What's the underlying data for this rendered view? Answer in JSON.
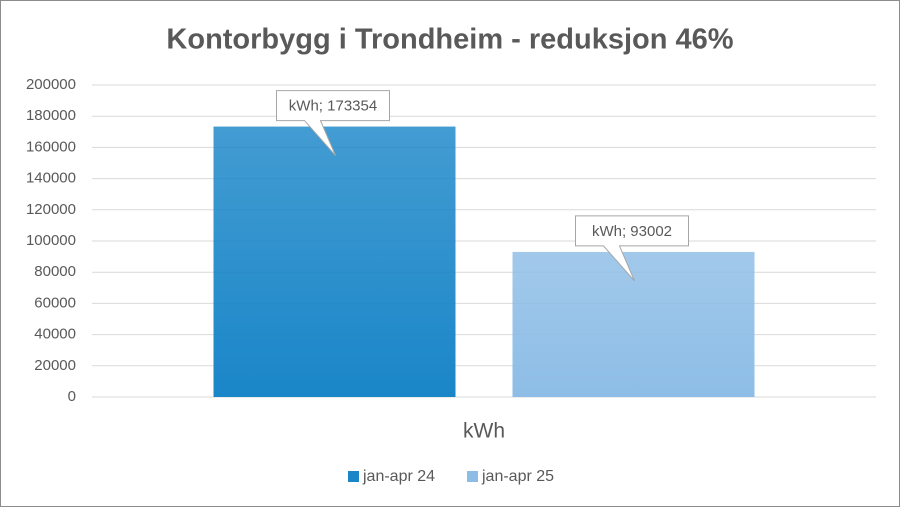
{
  "chart_data": {
    "type": "bar",
    "title": "Kontorbygg i Trondheim - reduksjon 46%",
    "categories": [
      "kWh"
    ],
    "series": [
      {
        "name": "jan-apr 24",
        "color": "#1a86c8",
        "values": [
          173354
        ],
        "value_labels": [
          "kWh; 173354"
        ]
      },
      {
        "name": "jan-apr 25",
        "color": "#8dbde6",
        "values": [
          93002
        ],
        "value_labels": [
          "kWh; 93002"
        ]
      }
    ],
    "ylim": [
      0,
      200000
    ],
    "yticks": [
      0,
      20000,
      40000,
      60000,
      80000,
      100000,
      120000,
      140000,
      160000,
      180000,
      200000
    ],
    "grid": true,
    "legend": "bottom"
  }
}
